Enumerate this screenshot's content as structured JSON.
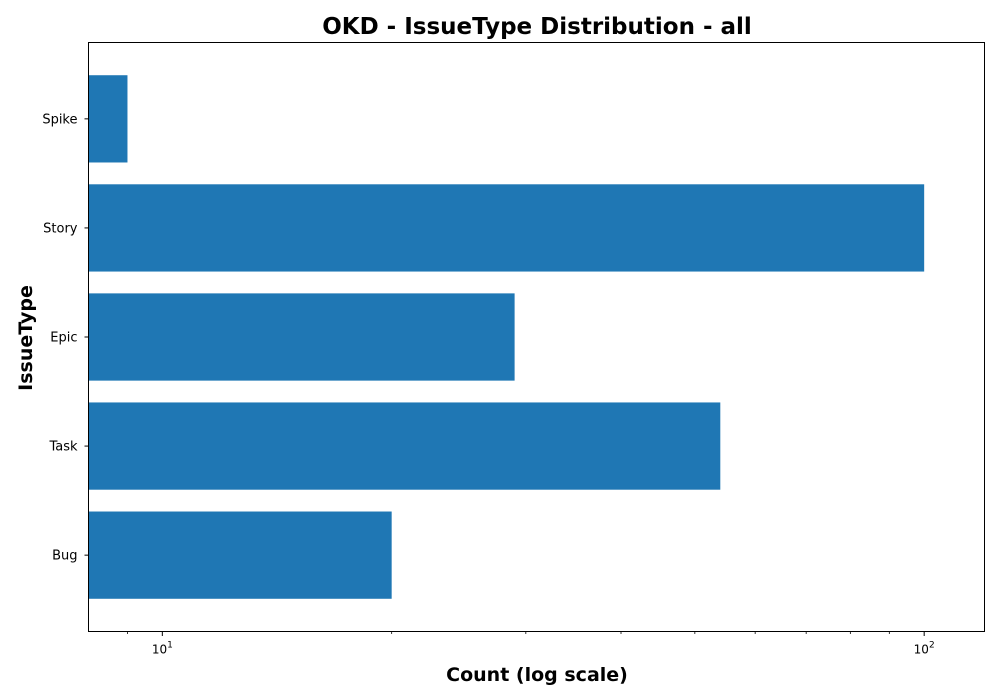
{
  "chart_data": {
    "type": "bar",
    "orientation": "horizontal",
    "title": "OKD - IssueType Distribution - all",
    "xlabel": "Count (log scale)",
    "ylabel": "IssueType",
    "x_scale": "log",
    "xlim": [
      8,
      120
    ],
    "x_ticks": [
      {
        "value": 10,
        "base": "10",
        "exp": "1"
      },
      {
        "value": 100,
        "base": "10",
        "exp": "2"
      }
    ],
    "categories": [
      "Bug",
      "Task",
      "Epic",
      "Story",
      "Spike"
    ],
    "values": [
      20,
      54,
      29,
      100,
      9
    ],
    "color": "#1f77b4",
    "grid": false,
    "legend": "none"
  }
}
